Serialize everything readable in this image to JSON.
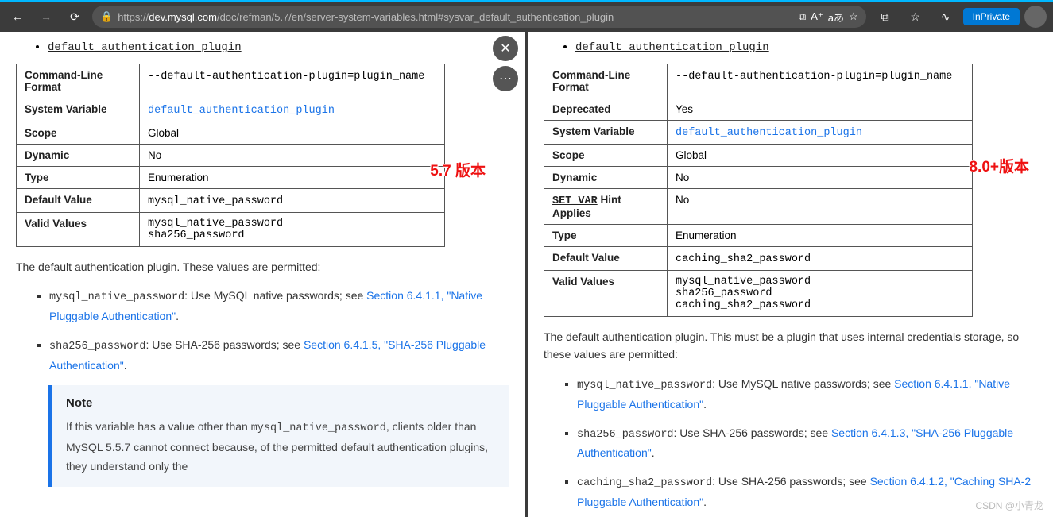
{
  "browser": {
    "url_proto": "https://",
    "url_host": "dev.mysql.com",
    "url_path": "/doc/refman/5.7/en/server-system-variables.html#sysvar_default_authentication_plugin",
    "inprivate_label": "InPrivate",
    "icons": {
      "back": "←",
      "forward": "→",
      "refresh": "⟳",
      "lock": "🔒",
      "reader": "⧉",
      "voice": "A⁺",
      "translate": "aあ",
      "star": "☆",
      "collections": "⧉",
      "fav": "☆",
      "sync": "∿"
    }
  },
  "float": {
    "close": "✕",
    "more": "⋯"
  },
  "left": {
    "version_badge": "5.7 版本",
    "anchor": "default_authentication_plugin",
    "table": {
      "rows": [
        {
          "label": "Command-Line Format",
          "value": "--default-authentication-plugin=plugin_name",
          "mono": true
        },
        {
          "label": "System Variable",
          "value": "default_authentication_plugin",
          "mono": true,
          "link": true
        },
        {
          "label": "Scope",
          "value": "Global"
        },
        {
          "label": "Dynamic",
          "value": "No"
        },
        {
          "label": "Type",
          "value": "Enumeration"
        },
        {
          "label": "Default Value",
          "value": "mysql_native_password",
          "mono": true
        },
        {
          "label": "Valid Values",
          "values": [
            "mysql_native_password",
            "sha256_password"
          ],
          "mono": true
        }
      ]
    },
    "desc": "The default authentication plugin. These values are permitted:",
    "items": [
      {
        "code": "mysql_native_password",
        "text": ": Use MySQL native passwords; see ",
        "link": "Section 6.4.1.1, \"Native Pluggable Authentication\"",
        "tail": "."
      },
      {
        "code": "sha256_password",
        "text": ": Use SHA-256 passwords; see ",
        "link": "Section 6.4.1.5, \"SHA-256 Pluggable Authentication\"",
        "tail": "."
      }
    ],
    "note": {
      "title": "Note",
      "body_pre": "If this variable has a value other than ",
      "body_code": "mysql_native_password",
      "body_post": ", clients older than MySQL 5.5.7 cannot connect because, of the permitted default authentication plugins, they understand only the"
    }
  },
  "right": {
    "version_badge": "8.0+版本",
    "anchor": "default_authentication_plugin",
    "table": {
      "rows": [
        {
          "label": "Command-Line Format",
          "value": "--default-authentication-plugin=plugin_name",
          "mono": true
        },
        {
          "label": "Deprecated",
          "value": "Yes"
        },
        {
          "label": "System Variable",
          "value": "default_authentication_plugin",
          "mono": true,
          "link": true
        },
        {
          "label": "Scope",
          "value": "Global"
        },
        {
          "label": "Dynamic",
          "value": "No"
        },
        {
          "label_html": "setvar",
          "label": "SET_VAR",
          "label_suffix": " Hint Applies",
          "value": "No"
        },
        {
          "label": "Type",
          "value": "Enumeration"
        },
        {
          "label": "Default Value",
          "value": "caching_sha2_password",
          "mono": true
        },
        {
          "label": "Valid Values",
          "values": [
            "mysql_native_password",
            "sha256_password",
            "caching_sha2_password"
          ],
          "mono": true
        }
      ]
    },
    "desc": "The default authentication plugin. This must be a plugin that uses internal credentials storage, so these values are permitted:",
    "items": [
      {
        "code": "mysql_native_password",
        "text": ": Use MySQL native passwords; see ",
        "link": "Section 6.4.1.1, \"Native Pluggable Authentication\"",
        "tail": "."
      },
      {
        "code": "sha256_password",
        "text": ": Use SHA-256 passwords; see ",
        "link": "Section 6.4.1.3, \"SHA-256 Pluggable Authentication\"",
        "tail": "."
      },
      {
        "code": "caching_sha2_password",
        "text": ": Use SHA-256 passwords; see ",
        "link": "Section 6.4.1.2, \"Caching SHA-2 Pluggable Authentication\"",
        "tail": "."
      }
    ]
  },
  "watermark": "CSDN @小青龙"
}
